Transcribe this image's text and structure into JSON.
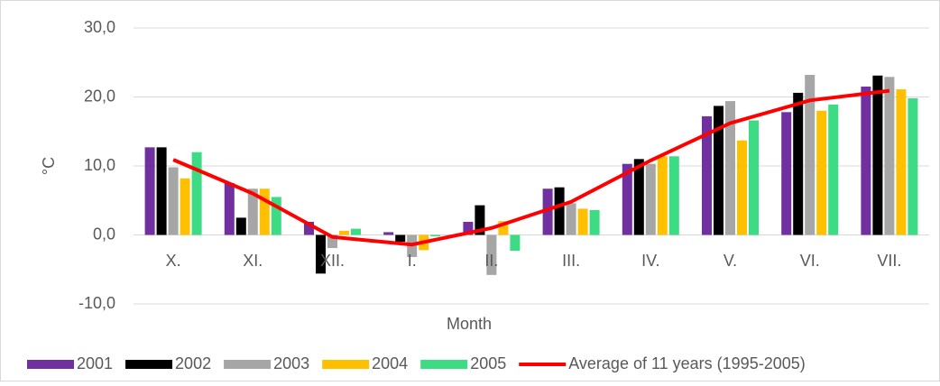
{
  "chart_data": {
    "type": "bar_line",
    "x_label": "Month",
    "y_label": "°C",
    "categories": [
      "X.",
      "XI.",
      "XII.",
      "I.",
      "II.",
      "III.",
      "IV.",
      "V.",
      "VI.",
      "VII."
    ],
    "series": [
      {
        "name": "2001",
        "type": "bar",
        "color": "#7030a0",
        "values": [
          12.7,
          7.5,
          1.9,
          0.4,
          1.9,
          6.7,
          10.3,
          17.2,
          17.8,
          21.5
        ]
      },
      {
        "name": "2002",
        "type": "bar",
        "color": "#000000",
        "values": [
          12.7,
          2.5,
          -5.6,
          -1.0,
          4.3,
          6.9,
          11.0,
          18.7,
          20.6,
          23.1
        ]
      },
      {
        "name": "2003",
        "type": "bar",
        "color": "#a6a6a6",
        "values": [
          9.8,
          6.7,
          -1.9,
          -3.2,
          -5.8,
          4.6,
          10.3,
          19.4,
          23.2,
          22.9
        ]
      },
      {
        "name": "2004",
        "type": "bar",
        "color": "#ffc000",
        "values": [
          8.2,
          6.7,
          0.6,
          -2.2,
          2.0,
          3.8,
          11.4,
          13.7,
          18.0,
          21.1
        ]
      },
      {
        "name": "2005",
        "type": "bar",
        "color": "#3ddc84",
        "values": [
          12.0,
          5.5,
          0.9,
          -0.2,
          -2.3,
          3.6,
          11.4,
          16.6,
          18.9,
          19.8
        ]
      },
      {
        "name": "Average of 11 years (1995-2005)",
        "type": "line",
        "color": "#ff0000",
        "values": [
          10.9,
          6.0,
          -0.3,
          -1.4,
          1.0,
          4.8,
          10.8,
          16.2,
          19.5,
          20.9
        ]
      }
    ],
    "ylim": [
      -10,
      30
    ],
    "yticks": [
      {
        "value": -10,
        "label": "-10,0"
      },
      {
        "value": 0,
        "label": "0,0"
      },
      {
        "value": 10,
        "label": "10,0"
      },
      {
        "value": 20,
        "label": "20,0"
      },
      {
        "value": 30,
        "label": "30,0"
      }
    ],
    "grid": true,
    "legend": "bottom"
  }
}
